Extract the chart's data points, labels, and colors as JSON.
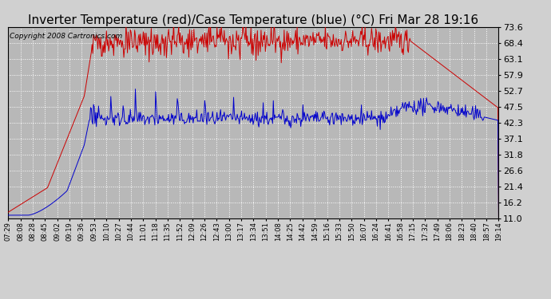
{
  "title": "Inverter Temperature (red)/Case Temperature (blue) (°C) Fri Mar 28 19:16",
  "copyright": "Copyright 2008 Cartronics.com",
  "yticks": [
    11.0,
    16.2,
    21.4,
    26.6,
    31.8,
    37.1,
    42.3,
    47.5,
    52.7,
    57.9,
    63.1,
    68.4,
    73.6
  ],
  "ylim": [
    11.0,
    73.6
  ],
  "xtick_labels": [
    "07:29",
    "08:08",
    "08:28",
    "08:45",
    "09:02",
    "09:19",
    "09:36",
    "09:53",
    "10:10",
    "10:27",
    "10:44",
    "11:01",
    "11:18",
    "11:35",
    "11:52",
    "12:09",
    "12:26",
    "12:43",
    "13:00",
    "13:17",
    "13:34",
    "13:51",
    "14:08",
    "14:25",
    "14:42",
    "14:59",
    "15:16",
    "15:33",
    "15:50",
    "16:07",
    "16:24",
    "16:41",
    "16:58",
    "17:15",
    "17:32",
    "17:49",
    "18:06",
    "18:23",
    "18:40",
    "18:57",
    "19:14"
  ],
  "fig_bg_color": "#d0d0d0",
  "plot_bg_color": "#b8b8b8",
  "grid_color": "#ffffff",
  "red_color": "#cc0000",
  "blue_color": "#0000cc",
  "title_fontsize": 11,
  "copyright_fontsize": 6.5,
  "ytick_fontsize": 8,
  "xtick_fontsize": 6
}
